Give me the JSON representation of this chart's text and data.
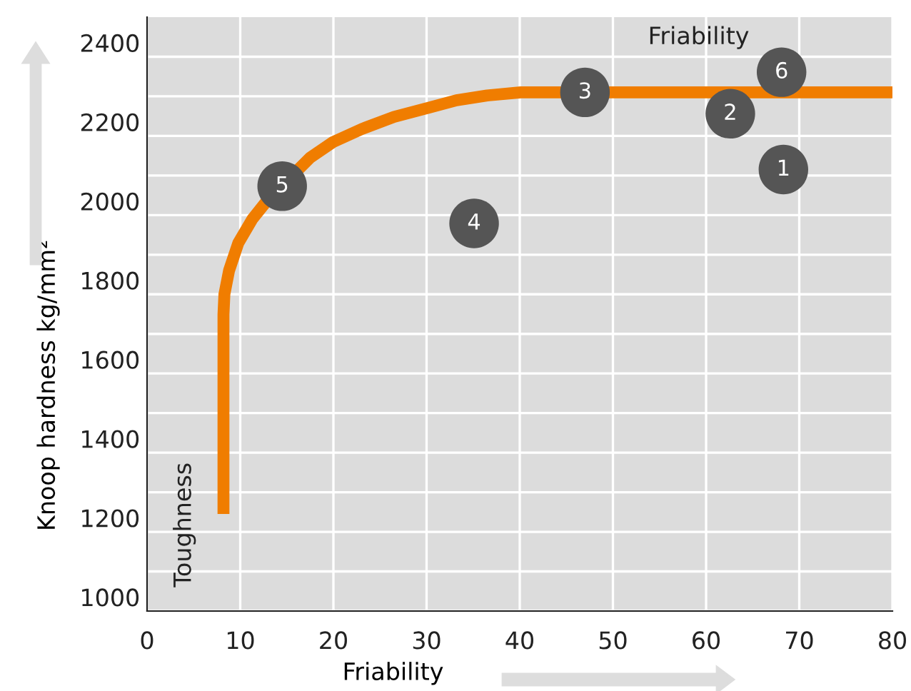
{
  "chart_data": {
    "type": "scatter",
    "xlabel": "Friability",
    "ylabel": "Knoop hardness kg/mm²",
    "xlim": [
      0,
      80
    ],
    "xticks": [
      0,
      10,
      20,
      30,
      40,
      50,
      60,
      70,
      80
    ],
    "ylim": [
      1000,
      2500
    ],
    "yticks": [
      1000,
      {
        "value": 1100,
        "label": null
      },
      1200,
      {
        "value": 1300,
        "label": null
      },
      1400,
      {
        "value": 1500,
        "label": null
      },
      1600,
      {
        "value": 1700,
        "label": null
      },
      1800,
      {
        "value": 1900,
        "label": null
      },
      2000,
      {
        "value": 2100,
        "label": null
      },
      2200,
      {
        "value": 2300,
        "label": null
      },
      2400
    ],
    "grid": true,
    "annotations": [
      "Friability",
      "Toughness",
      {
        "text": "1",
        "x": 68.3,
        "y": 2115
      },
      {
        "text": "2",
        "x": 62.6,
        "y": 2256
      },
      {
        "text": "3",
        "x": 47.0,
        "y": 2310
      },
      {
        "text": "4",
        "x": 35.1,
        "y": 1979
      },
      {
        "text": "5",
        "x": 14.5,
        "y": 2073
      },
      {
        "text": "6",
        "x": 68.1,
        "y": 2361
      }
    ],
    "series": [
      {
        "type": "line",
        "color": "#f07d00",
        "marker": "none",
        "x": [
          8.2,
          8.2,
          8.3,
          8.8,
          9.8,
          11.3,
          12.9,
          17.5,
          20,
          23,
          26.5,
          30.2,
          33.2,
          36.5,
          40.1,
          80
        ],
        "values": [
          1245,
          1749,
          1800,
          1860,
          1930,
          1990,
          2037,
          2145,
          2185,
          2217,
          2248,
          2271,
          2290,
          2302,
          2310,
          2310
        ]
      },
      {
        "color": "#555555",
        "marker": "circle",
        "x": [
          68.3,
          62.6,
          47.0,
          35.1,
          14.5,
          68.1
        ],
        "values": [
          2115,
          2256,
          2310,
          1979,
          2073,
          2361
        ]
      }
    ]
  }
}
